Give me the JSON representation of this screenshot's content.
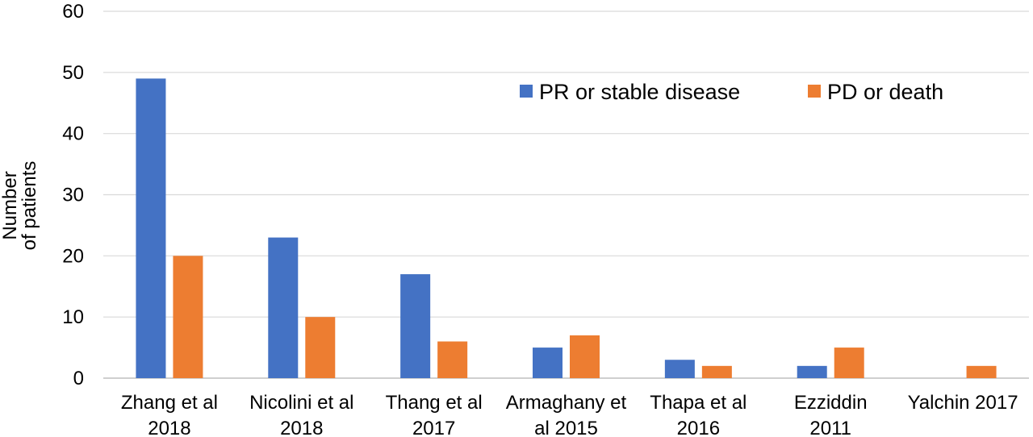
{
  "chart_data": {
    "type": "bar",
    "title": "",
    "xlabel": "",
    "ylabel": [
      "Number",
      "of patients"
    ],
    "ylim": [
      0,
      60
    ],
    "yticks": [
      0,
      10,
      20,
      30,
      40,
      50,
      60
    ],
    "grid": true,
    "legend_position": "top-right",
    "categories": [
      [
        "Zhang et al",
        "2018"
      ],
      [
        "Nicolini et al",
        "2018"
      ],
      [
        "Thang et al",
        "2017"
      ],
      [
        "Armaghany et",
        "al 2015"
      ],
      [
        "Thapa et al",
        "2016"
      ],
      [
        "Ezziddin",
        "2011"
      ],
      [
        "Yalchin 2017"
      ]
    ],
    "series": [
      {
        "name": "PR or stable disease",
        "color": "#4472C4",
        "values": [
          49,
          23,
          17,
          5,
          3,
          2,
          0
        ]
      },
      {
        "name": "PD or death",
        "color": "#ED7D31",
        "values": [
          20,
          10,
          6,
          7,
          2,
          5,
          2
        ]
      }
    ]
  }
}
